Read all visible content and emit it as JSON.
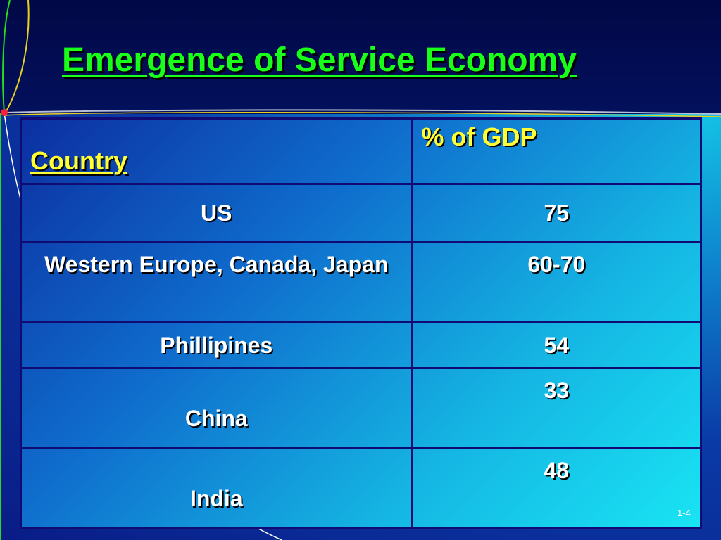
{
  "slide": {
    "title": "Emergence of Service Economy",
    "slide_number": "1-4"
  },
  "table": {
    "headers": [
      "Country",
      "% of GDP"
    ],
    "rows": [
      {
        "country": "US",
        "gdp": "75"
      },
      {
        "country": "Western Europe, Canada, Japan",
        "gdp": "60-70"
      },
      {
        "country": "Phillipines",
        "gdp": "54"
      },
      {
        "country": "China",
        "gdp": "33"
      },
      {
        "country": "India",
        "gdp": "48"
      }
    ]
  },
  "colors": {
    "title": "#1aff1a",
    "header_text": "#ffff33",
    "cell_text": "#ffffff",
    "border": "#120a73",
    "background_dark": "#010846",
    "background_light": "#19e4f3"
  }
}
